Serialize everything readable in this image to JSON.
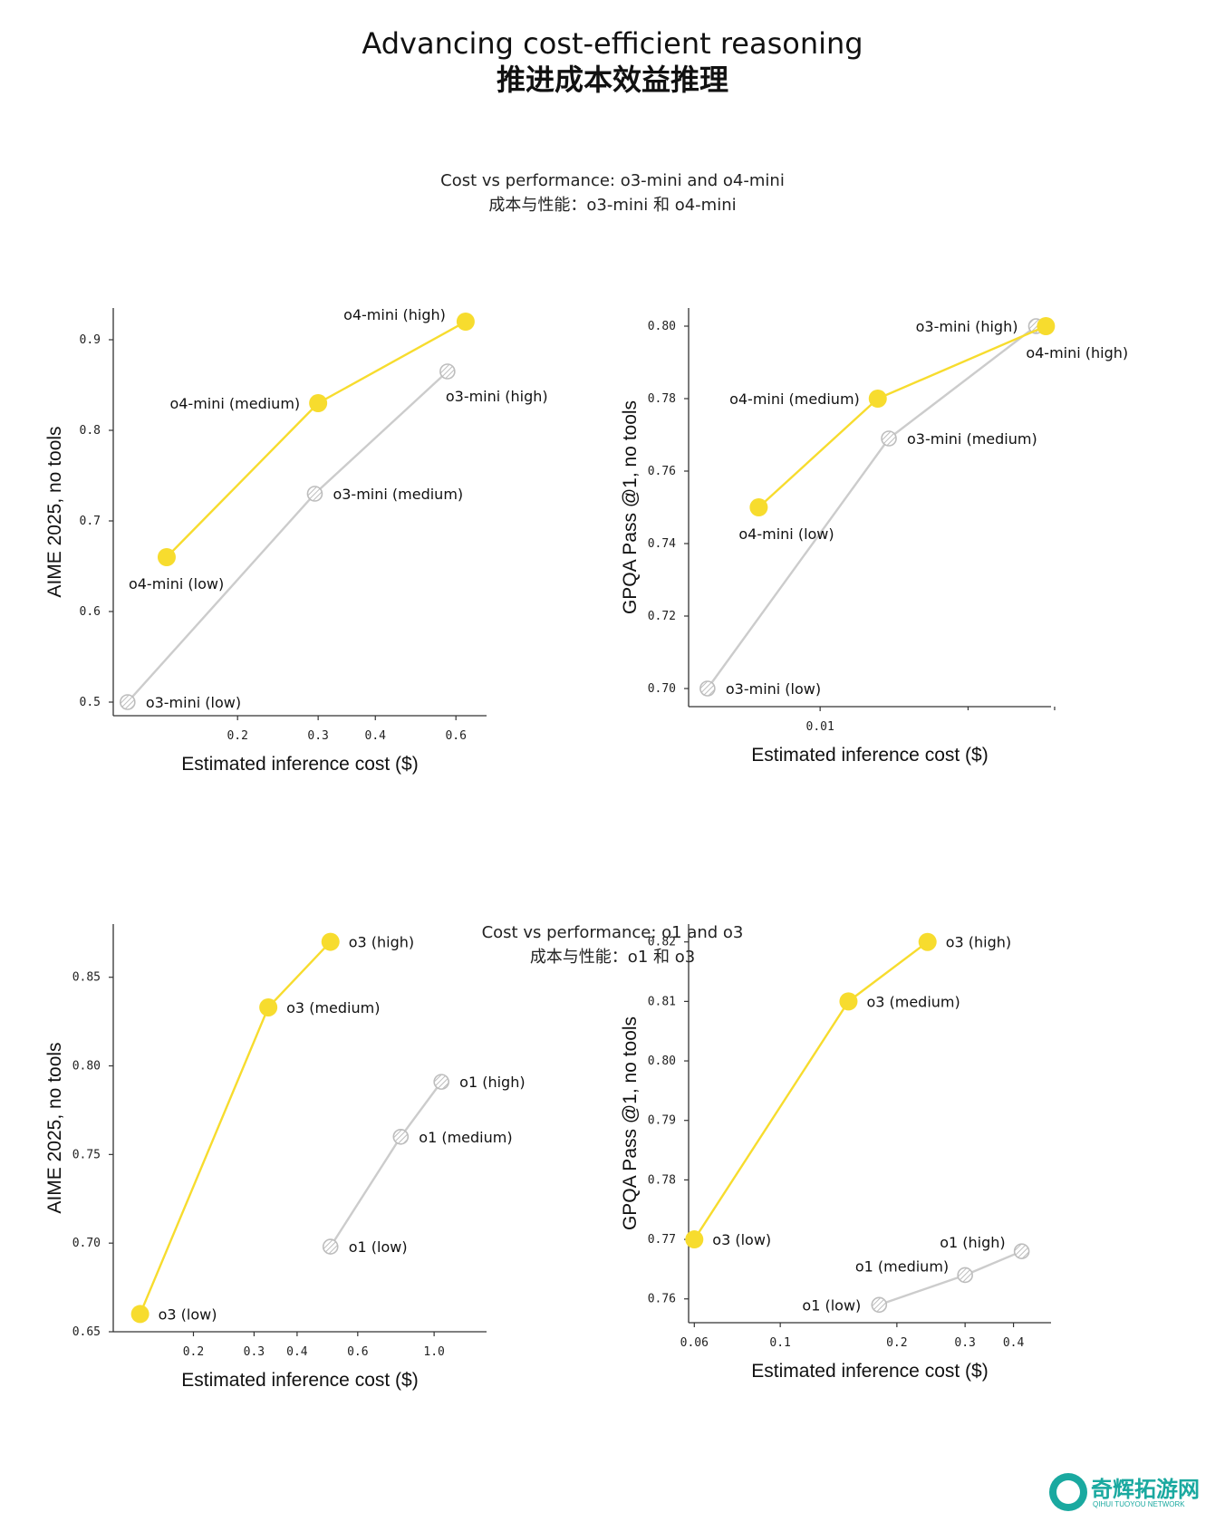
{
  "header": {
    "title_en": "Advancing cost-efficient reasoning",
    "title_zh": "推进成本效益推理"
  },
  "sections": [
    {
      "title_en": "Cost vs performance: o3-mini and o4-mini",
      "title_zh": "成本与性能：o3-mini 和 o4-mini"
    },
    {
      "title_en": "Cost vs performance: o1 and o3",
      "title_zh": "成本与性能：o1 和 o3"
    }
  ],
  "colors": {
    "new_model": "#F7DC2E",
    "old_model_line": "#CCCCCC",
    "old_model_marker": "#BDBDBD"
  },
  "watermark": {
    "text": "奇辉拓游网",
    "sub": "QIHUI TUOYOU NETWORK"
  },
  "chart_data": [
    {
      "id": "tl",
      "type": "scatter",
      "xscale": "log",
      "xlabel": "Estimated inference cost ($)",
      "ylabel": "AIME 2025, no tools",
      "xlim": [
        0.107,
        0.7
      ],
      "ylim": [
        0.485,
        0.935
      ],
      "xticks": [
        {
          "value": 0.2,
          "label": "0.2"
        },
        {
          "value": 0.3,
          "label": "0.3"
        },
        {
          "value": 0.4,
          "label": "0.4"
        },
        {
          "value": 0.6,
          "label": "0.6"
        }
      ],
      "yticks": [
        {
          "value": 0.5,
          "label": "0.5"
        },
        {
          "value": 0.6,
          "label": "0.6"
        },
        {
          "value": 0.7,
          "label": "0.7"
        },
        {
          "value": 0.8,
          "label": "0.8"
        },
        {
          "value": 0.9,
          "label": "0.9"
        }
      ],
      "series": [
        {
          "name": "o3-mini",
          "style": "old",
          "points": [
            {
              "x": 0.115,
              "y": 0.5,
              "label": "o3-mini (low)",
              "pos": "right"
            },
            {
              "x": 0.295,
              "y": 0.73,
              "label": "o3-mini (medium)",
              "pos": "right"
            },
            {
              "x": 0.575,
              "y": 0.865,
              "label": "o3-mini (high)",
              "pos": "below-right"
            }
          ]
        },
        {
          "name": "o4-mini",
          "style": "new",
          "points": [
            {
              "x": 0.14,
              "y": 0.66,
              "label": "o4-mini (low)",
              "pos": "below"
            },
            {
              "x": 0.3,
              "y": 0.83,
              "label": "o4-mini (medium)",
              "pos": "left"
            },
            {
              "x": 0.63,
              "y": 0.92,
              "label": "o4-mini (high)",
              "pos": "above-left"
            }
          ]
        }
      ]
    },
    {
      "id": "tr",
      "type": "scatter",
      "xscale": "log",
      "xlabel": "Estimated inference cost ($)",
      "ylabel": "GPQA Pass @1, no tools",
      "xlim": [
        0.0054,
        0.0295
      ],
      "ylim": [
        0.695,
        0.805
      ],
      "xticks": [
        {
          "value": 0.01,
          "label": "0.01"
        }
      ],
      "minor_xticks": [
        0.02,
        0.03
      ],
      "yticks": [
        {
          "value": 0.7,
          "label": "0.70"
        },
        {
          "value": 0.72,
          "label": "0.72"
        },
        {
          "value": 0.74,
          "label": "0.74"
        },
        {
          "value": 0.76,
          "label": "0.76"
        },
        {
          "value": 0.78,
          "label": "0.78"
        },
        {
          "value": 0.8,
          "label": "0.80"
        }
      ],
      "series": [
        {
          "name": "o3-mini",
          "style": "old",
          "points": [
            {
              "x": 0.0059,
              "y": 0.7,
              "label": "o3-mini (low)",
              "pos": "right"
            },
            {
              "x": 0.0138,
              "y": 0.769,
              "label": "o3-mini (medium)",
              "pos": "right"
            },
            {
              "x": 0.0275,
              "y": 0.8,
              "label": "o3-mini (high)",
              "pos": "left"
            }
          ]
        },
        {
          "name": "o4-mini",
          "style": "new",
          "points": [
            {
              "x": 0.0075,
              "y": 0.75,
              "label": "o4-mini (low)",
              "pos": "below"
            },
            {
              "x": 0.0131,
              "y": 0.78,
              "label": "o4-mini (medium)",
              "pos": "left"
            },
            {
              "x": 0.0288,
              "y": 0.8,
              "label": "o4-mini (high)",
              "pos": "below"
            }
          ]
        }
      ]
    },
    {
      "id": "bl",
      "type": "scatter",
      "xscale": "log",
      "xlabel": "Estimated inference cost ($)",
      "ylabel": "AIME 2025, no tools",
      "xlim": [
        0.117,
        1.42
      ],
      "ylim": [
        0.65,
        0.88
      ],
      "xticks": [
        {
          "value": 0.2,
          "label": "0.2"
        },
        {
          "value": 0.3,
          "label": "0.3"
        },
        {
          "value": 0.4,
          "label": "0.4"
        },
        {
          "value": 0.6,
          "label": "0.6"
        },
        {
          "value": 1.0,
          "label": "1.0"
        }
      ],
      "yticks": [
        {
          "value": 0.65,
          "label": "0.65"
        },
        {
          "value": 0.7,
          "label": "0.70"
        },
        {
          "value": 0.75,
          "label": "0.75"
        },
        {
          "value": 0.8,
          "label": "0.80"
        },
        {
          "value": 0.85,
          "label": "0.85"
        }
      ],
      "series": [
        {
          "name": "o1",
          "style": "old",
          "points": [
            {
              "x": 0.5,
              "y": 0.698,
              "label": "o1 (low)",
              "pos": "right"
            },
            {
              "x": 0.8,
              "y": 0.76,
              "label": "o1 (medium)",
              "pos": "right"
            },
            {
              "x": 1.05,
              "y": 0.791,
              "label": "o1 (high)",
              "pos": "right"
            }
          ]
        },
        {
          "name": "o3",
          "style": "new",
          "points": [
            {
              "x": 0.14,
              "y": 0.66,
              "label": "o3 (low)",
              "pos": "right"
            },
            {
              "x": 0.33,
              "y": 0.833,
              "label": "o3 (medium)",
              "pos": "right"
            },
            {
              "x": 0.5,
              "y": 0.87,
              "label": "o3 (high)",
              "pos": "right"
            }
          ]
        }
      ]
    },
    {
      "id": "br",
      "type": "scatter",
      "xscale": "log",
      "xlabel": "Estimated inference cost ($)",
      "ylabel": "GPQA Pass @1, no tools",
      "xlim": [
        0.058,
        0.5
      ],
      "ylim": [
        0.756,
        0.823
      ],
      "xticks": [
        {
          "value": 0.06,
          "label": "0.06"
        },
        {
          "value": 0.1,
          "label": "0.1"
        },
        {
          "value": 0.2,
          "label": "0.2"
        },
        {
          "value": 0.3,
          "label": "0.3"
        },
        {
          "value": 0.4,
          "label": "0.4"
        }
      ],
      "yticks": [
        {
          "value": 0.76,
          "label": "0.76"
        },
        {
          "value": 0.77,
          "label": "0.77"
        },
        {
          "value": 0.78,
          "label": "0.78"
        },
        {
          "value": 0.79,
          "label": "0.79"
        },
        {
          "value": 0.8,
          "label": "0.80"
        },
        {
          "value": 0.81,
          "label": "0.81"
        },
        {
          "value": 0.82,
          "label": "0.82"
        }
      ],
      "series": [
        {
          "name": "o1",
          "style": "old",
          "points": [
            {
              "x": 0.18,
              "y": 0.759,
              "label": "o1 (low)",
              "pos": "left"
            },
            {
              "x": 0.3,
              "y": 0.764,
              "label": "o1 (medium)",
              "pos": "above-left"
            },
            {
              "x": 0.42,
              "y": 0.768,
              "label": "o1 (high)",
              "pos": "above-left"
            }
          ]
        },
        {
          "name": "o3",
          "style": "new",
          "points": [
            {
              "x": 0.06,
              "y": 0.77,
              "label": "o3 (low)",
              "pos": "right"
            },
            {
              "x": 0.15,
              "y": 0.81,
              "label": "o3 (medium)",
              "pos": "right"
            },
            {
              "x": 0.24,
              "y": 0.82,
              "label": "o3 (high)",
              "pos": "right"
            }
          ]
        }
      ]
    }
  ]
}
